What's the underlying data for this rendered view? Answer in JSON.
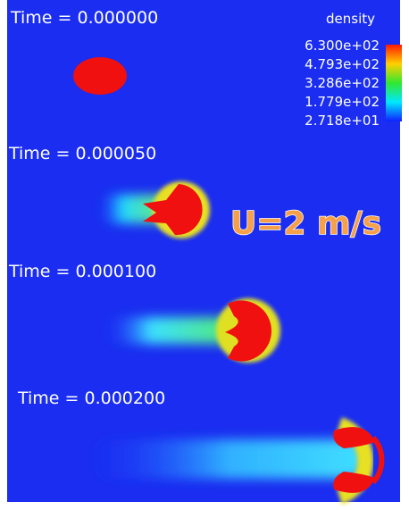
{
  "panels": [
    {
      "time_label": "Time = 0.000000"
    },
    {
      "time_label": "Time = 0.000050"
    },
    {
      "time_label": "Time = 0.000100"
    },
    {
      "time_label": "Time = 0.000200"
    }
  ],
  "legend": {
    "title": "density",
    "labels": [
      "6.300e+02",
      "4.793e+02",
      "3.286e+02",
      "1.779e+02",
      "2.718e+01"
    ]
  },
  "annotation": "U=2 m/s"
}
